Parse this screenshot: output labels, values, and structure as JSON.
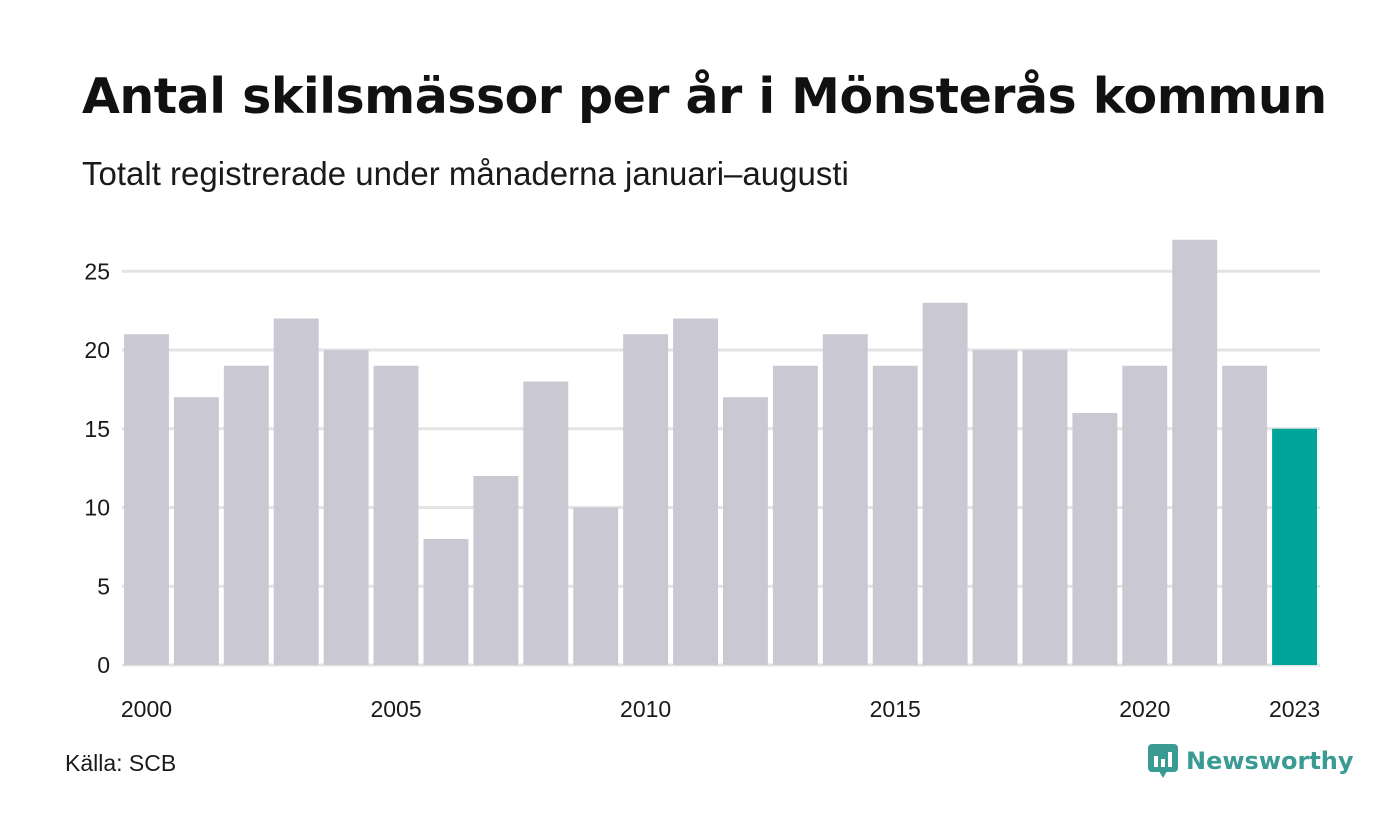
{
  "title": "Antal skilsmässor per år i Mönsterås kommun",
  "subtitle": "Totalt registrerade under månaderna januari–augusti",
  "source": "Källa: SCB",
  "brand": {
    "label": "Newsworthy",
    "icon": "chart-bubble-icon"
  },
  "colors": {
    "bar": "#c9c8d3",
    "highlight": "#00a599",
    "grid": "#e3e3e3",
    "brand": "#3a9a94"
  },
  "chart_data": {
    "type": "bar",
    "title": "Antal skilsmässor per år i Mönsterås kommun",
    "subtitle": "Totalt registrerade under månaderna januari–augusti",
    "xlabel": "",
    "ylabel": "",
    "categories": [
      2000,
      2001,
      2002,
      2003,
      2004,
      2005,
      2006,
      2007,
      2008,
      2009,
      2010,
      2011,
      2012,
      2013,
      2014,
      2015,
      2016,
      2017,
      2018,
      2019,
      2020,
      2021,
      2022,
      2023
    ],
    "values": [
      21,
      17,
      19,
      22,
      20,
      19,
      8,
      12,
      18,
      10,
      21,
      22,
      17,
      19,
      21,
      19,
      23,
      20,
      20,
      16,
      19,
      27,
      19,
      15
    ],
    "highlight": [
      2023
    ],
    "x_tick_labels": [
      "2000",
      "2005",
      "2010",
      "2015",
      "2020",
      "2023"
    ],
    "y_ticks": [
      0,
      5,
      10,
      15,
      20,
      25
    ],
    "ylim": [
      0,
      27
    ],
    "grid": true,
    "legend": "none"
  }
}
